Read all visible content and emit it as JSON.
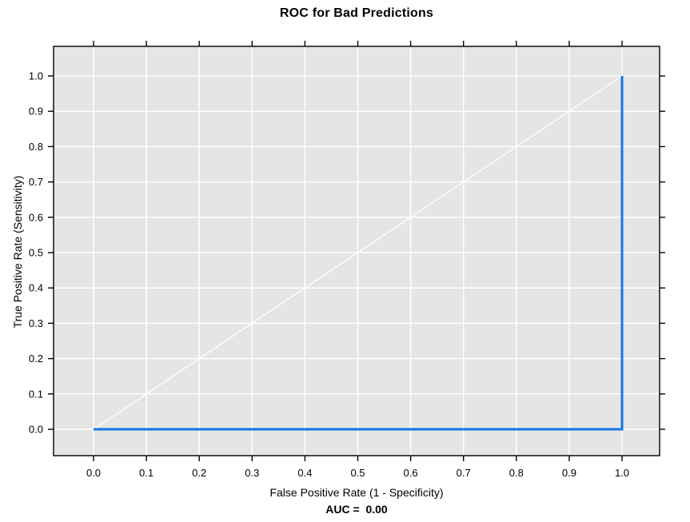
{
  "figure": {
    "title": "ROC for Bad Predictions"
  },
  "chart_data": {
    "type": "line",
    "title": "ROC for Bad Predictions",
    "xlabel": "False Positive Rate (1 - Specificity)",
    "ylabel": "True Positive Rate (Sensitivity)",
    "annotation": "AUC =  0.00",
    "auc_value": 0.0,
    "xlim": [
      0,
      1
    ],
    "ylim": [
      0,
      1
    ],
    "xticks": [
      0.0,
      0.1,
      0.2,
      0.3,
      0.4,
      0.5,
      0.6,
      0.7,
      0.8,
      0.9,
      1.0
    ],
    "yticks": [
      0.0,
      0.1,
      0.2,
      0.3,
      0.4,
      0.5,
      0.6,
      0.7,
      0.8,
      0.9,
      1.0
    ],
    "xtick_labels": [
      "0.0",
      "0.1",
      "0.2",
      "0.3",
      "0.4",
      "0.5",
      "0.6",
      "0.7",
      "0.8",
      "0.9",
      "1.0"
    ],
    "ytick_labels": [
      "0.0",
      "0.1",
      "0.2",
      "0.3",
      "0.4",
      "0.5",
      "0.6",
      "0.7",
      "0.8",
      "0.9",
      "1.0"
    ],
    "grid": true,
    "legend_position": "none",
    "plot_bg_color": "#e5e5e5",
    "grid_color": "#ffffff",
    "box_color": "#000000",
    "series": [
      {
        "name": "chance-reference-line",
        "color": "#fdfdfd",
        "width": 1.4,
        "points": [
          [
            0,
            0
          ],
          [
            1,
            1
          ]
        ]
      },
      {
        "name": "roc-curve",
        "color": "#1278e6",
        "width": 3,
        "points": [
          [
            0,
            0
          ],
          [
            1,
            0
          ],
          [
            1,
            1
          ]
        ]
      }
    ]
  }
}
